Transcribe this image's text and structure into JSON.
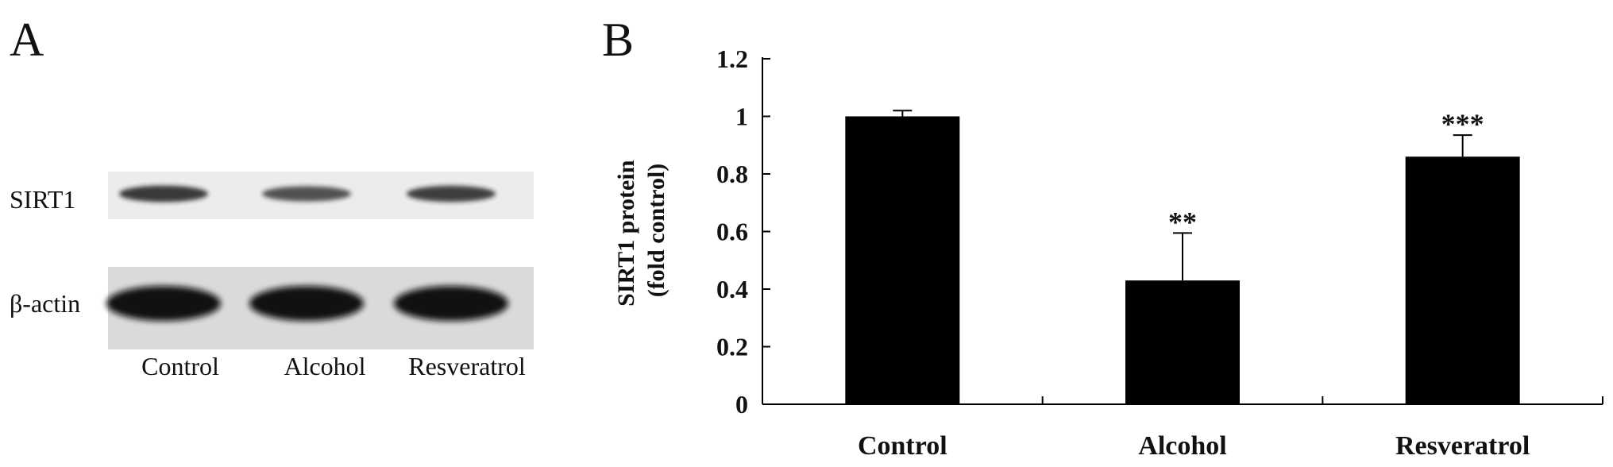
{
  "panel_a": {
    "letter": "A",
    "rows": [
      {
        "label": "SIRT1",
        "band_intensity": [
          0.85,
          0.65,
          0.8
        ]
      },
      {
        "label": "β-actin",
        "band_intensity": [
          1.0,
          1.0,
          1.0
        ]
      }
    ],
    "lanes": [
      "Control",
      "Alcohol",
      "Resveratrol"
    ]
  },
  "panel_b": {
    "letter": "B"
  },
  "chart_data": {
    "type": "bar",
    "categories": [
      "Control",
      "Alcohol",
      "Resveratrol"
    ],
    "values": [
      1.0,
      0.43,
      0.86
    ],
    "errors": [
      0.02,
      0.165,
      0.075
    ],
    "significance": [
      "",
      "**",
      "***"
    ],
    "ylabel": "SIRT1 protein\n(fold control)",
    "xlabel": "",
    "ylim": [
      0,
      1.2
    ],
    "yticks": [
      "0",
      "0.2",
      "0.4",
      "0.6",
      "0.8",
      "1",
      "1.2"
    ],
    "bar_color": "#000000",
    "grid": false,
    "legend": "none"
  }
}
